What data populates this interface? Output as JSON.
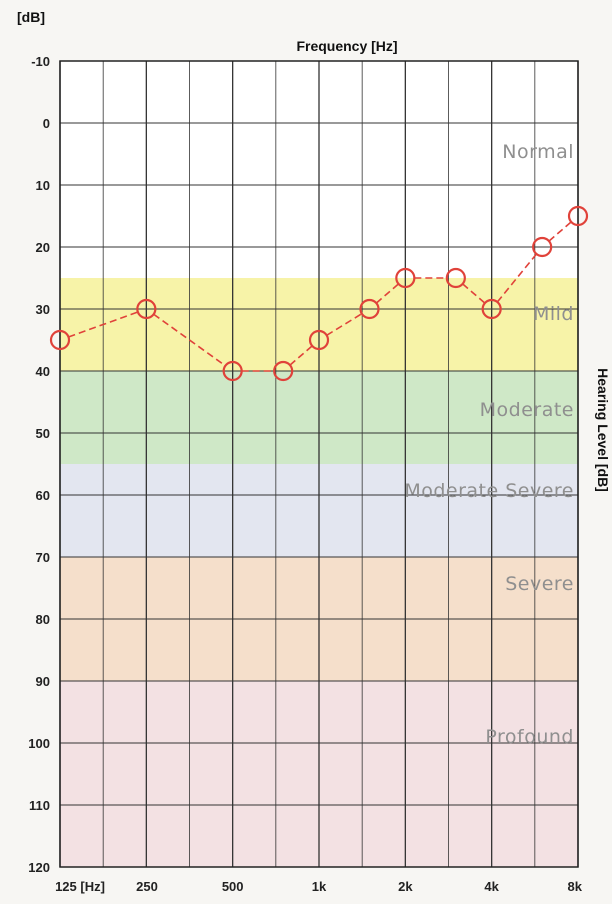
{
  "chart_data": {
    "type": "line",
    "title": "Frequency [Hz]",
    "ylabel_top": "[dB]",
    "ylabel_right": "Hearing Level [dB]",
    "y_ticks": [
      "-10",
      "0",
      "10",
      "20",
      "30",
      "40",
      "50",
      "60",
      "70",
      "80",
      "90",
      "100",
      "110",
      "120"
    ],
    "ylim": [
      -10,
      120
    ],
    "y_inverted": true,
    "x_scale": "log",
    "x_ticks": [
      {
        "hz": 125,
        "label": "125 [Hz]"
      },
      {
        "hz": 250,
        "label": "250"
      },
      {
        "hz": 500,
        "label": "500"
      },
      {
        "hz": 1000,
        "label": "1k"
      },
      {
        "hz": 2000,
        "label": "2k"
      },
      {
        "hz": 4000,
        "label": "4k"
      },
      {
        "hz": 8000,
        "label": "8k"
      }
    ],
    "grid": true,
    "zones": [
      {
        "label": "Normal",
        "from": -10,
        "to": 25,
        "color": "#ffffff"
      },
      {
        "label": "Mild",
        "from": 25,
        "to": 40,
        "color": "#f7f3a8"
      },
      {
        "label": "Moderate",
        "from": 40,
        "to": 55,
        "color": "#cfe8c7"
      },
      {
        "label": "Moderate Severe",
        "from": 55,
        "to": 70,
        "color": "#e3e6f0"
      },
      {
        "label": "Severe",
        "from": 70,
        "to": 90,
        "color": "#f5dfcb"
      },
      {
        "label": "Profound",
        "from": 90,
        "to": 120,
        "color": "#f3e1e3"
      }
    ],
    "series": [
      {
        "marker": "circle",
        "color": "#e0423a",
        "points": [
          {
            "hz": 125,
            "db": 35
          },
          {
            "hz": 250,
            "db": 30
          },
          {
            "hz": 500,
            "db": 40
          },
          {
            "hz": 750,
            "db": 40
          },
          {
            "hz": 1000,
            "db": 35
          },
          {
            "hz": 1500,
            "db": 30
          },
          {
            "hz": 2000,
            "db": 25
          },
          {
            "hz": 3000,
            "db": 25
          },
          {
            "hz": 4000,
            "db": 30
          },
          {
            "hz": 6000,
            "db": 20
          },
          {
            "hz": 8000,
            "db": 15
          }
        ]
      }
    ]
  }
}
